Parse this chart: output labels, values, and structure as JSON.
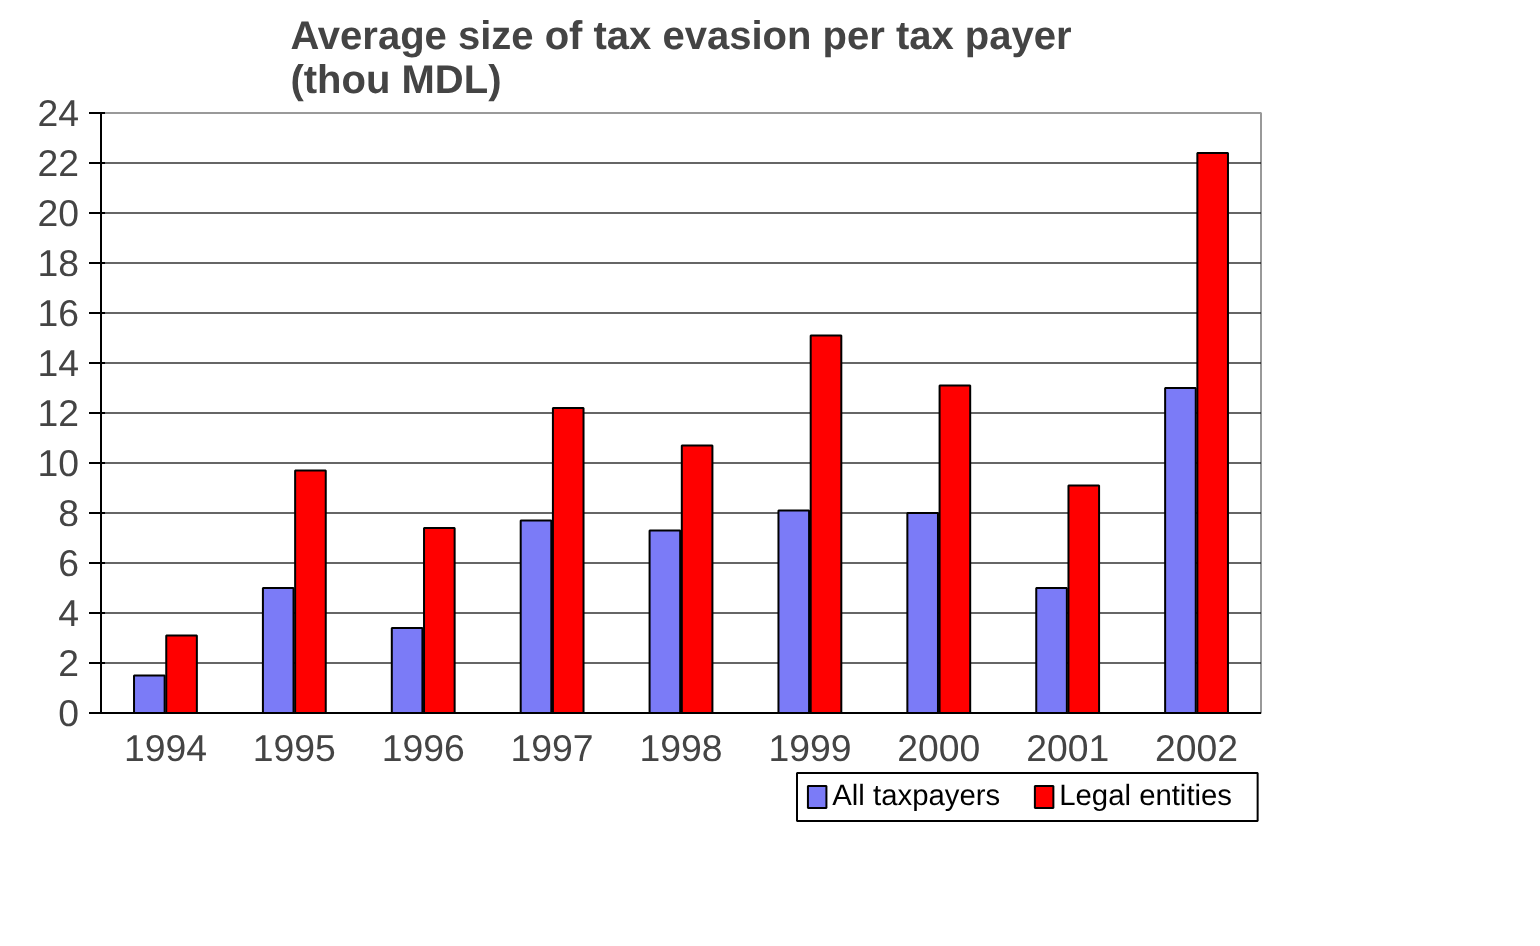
{
  "chart_data": {
    "type": "bar",
    "title": "Average size of tax evasion per tax payer\n(thou MDL)",
    "categories": [
      "1994",
      "1995",
      "1996",
      "1997",
      "1998",
      "1999",
      "2000",
      "2001",
      "2002"
    ],
    "series": [
      {
        "name": "All taxpayers",
        "color": "#7b7bf7",
        "values": [
          1.5,
          5.0,
          3.4,
          7.7,
          7.3,
          8.1,
          8.0,
          5.0,
          13.0
        ]
      },
      {
        "name": "Legal entities",
        "color": "#ff0000",
        "values": [
          3.1,
          9.7,
          7.4,
          12.2,
          10.7,
          15.1,
          13.1,
          9.1,
          22.4
        ]
      }
    ],
    "ylim": [
      0,
      24
    ],
    "yticks": [
      0,
      2,
      4,
      6,
      8,
      10,
      12,
      14,
      16,
      18,
      20,
      22,
      24
    ],
    "grid": "y",
    "legend": "bottom right"
  }
}
